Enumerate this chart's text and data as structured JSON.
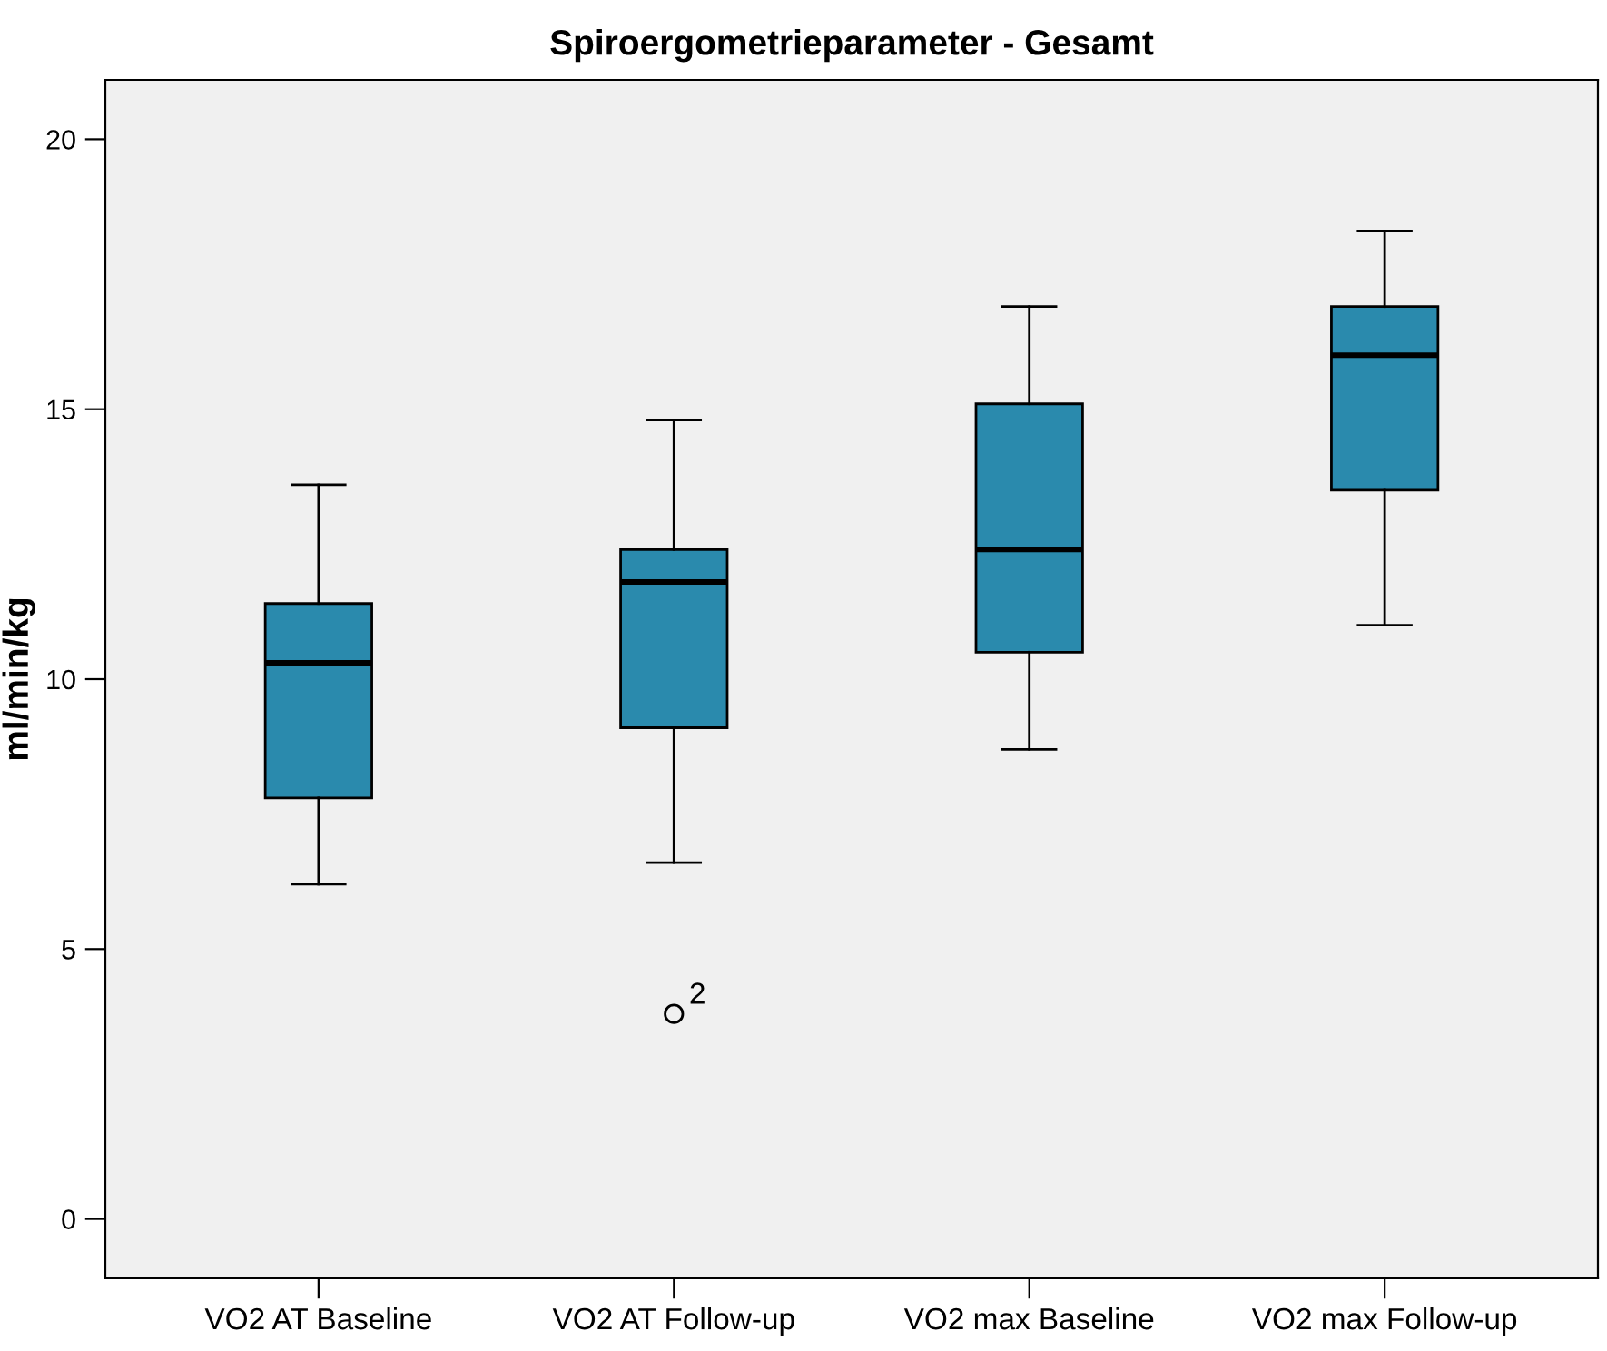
{
  "chart_data": {
    "type": "box",
    "title": "Spiroergometrieparameter - Gesamt",
    "ylabel": "ml/min/kg",
    "categories": [
      "VO2 AT Baseline",
      "VO2 AT Follow-up",
      "VO2 max Baseline",
      "VO2 max Follow-up"
    ],
    "color": "#2a8aad",
    "boxes": [
      {
        "low": 6.2,
        "q1": 7.8,
        "median": 10.3,
        "q3": 11.4,
        "high": 13.6
      },
      {
        "low": 6.6,
        "q1": 9.1,
        "median": 11.8,
        "q3": 12.4,
        "high": 14.8,
        "outliers": [
          3.8
        ]
      },
      {
        "low": 8.7,
        "q1": 10.5,
        "median": 12.4,
        "q3": 15.1,
        "high": 16.9
      },
      {
        "low": 11.0,
        "q1": 13.5,
        "median": 16.0,
        "q3": 16.9,
        "high": 18.3
      }
    ],
    "annotations": [
      "2"
    ],
    "ylim": [
      -1.1,
      21.1
    ],
    "yticks": [
      0,
      5,
      10,
      15,
      20
    ],
    "grid": false
  }
}
